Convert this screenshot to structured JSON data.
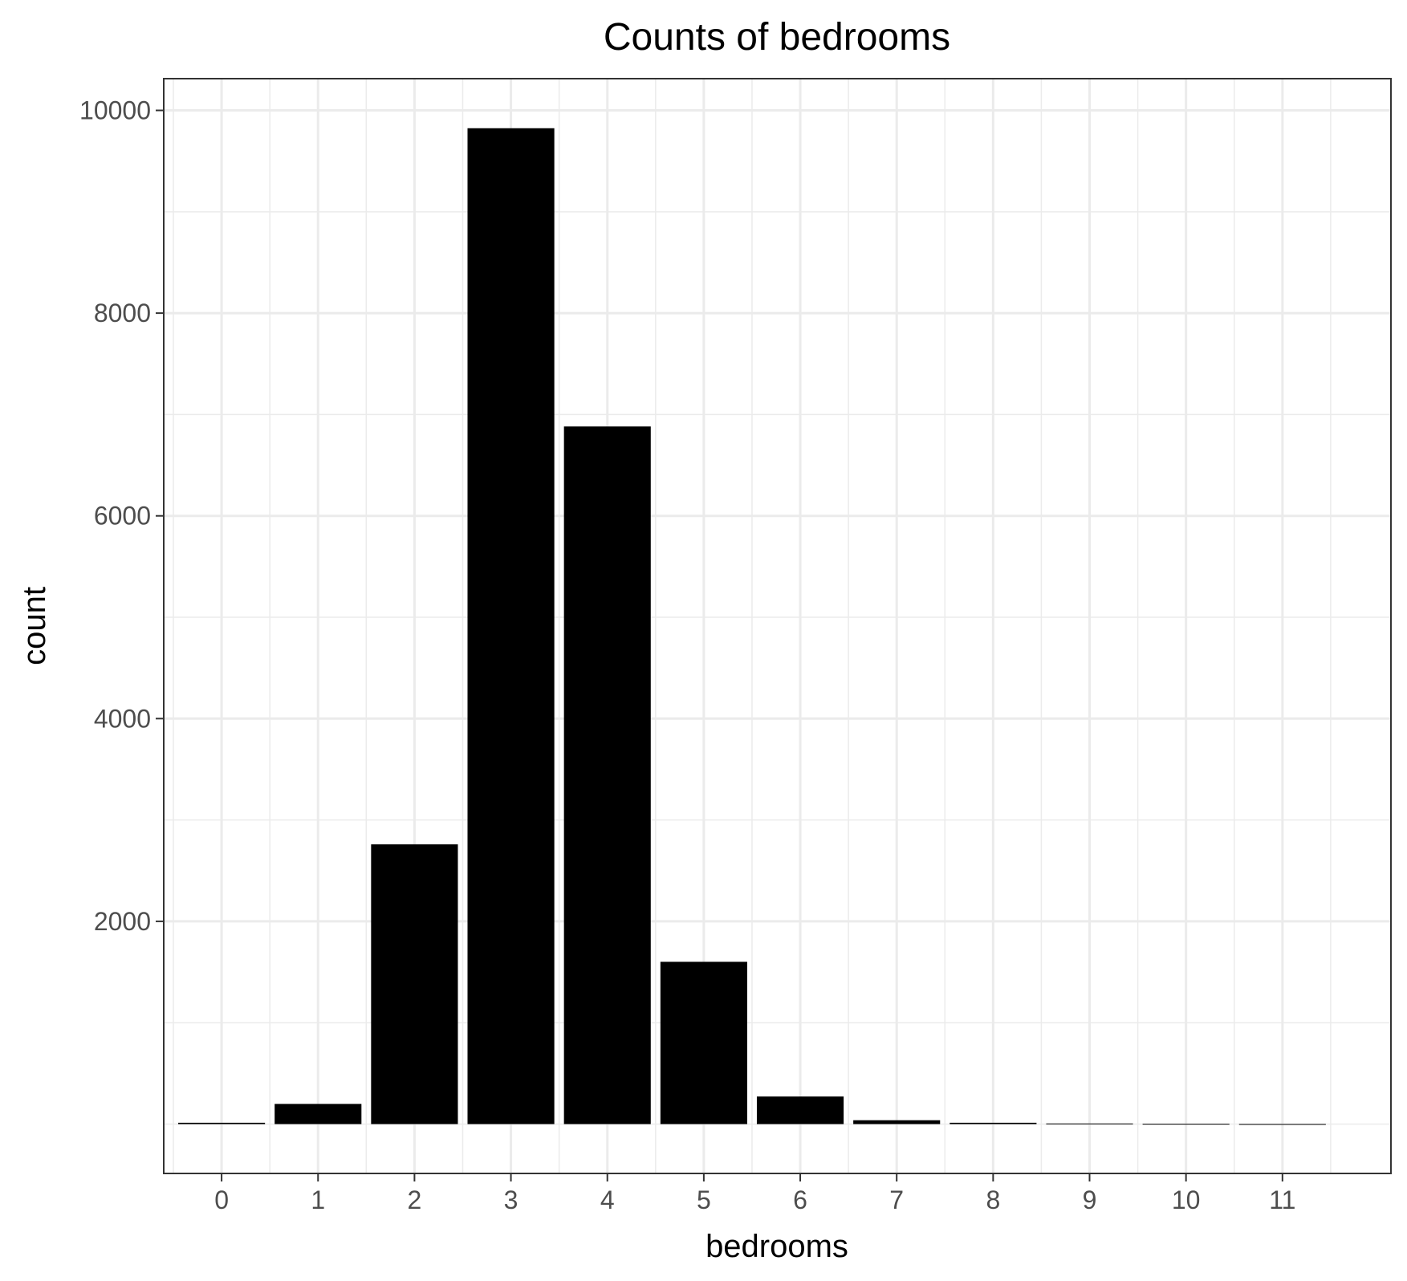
{
  "chart_data": {
    "type": "bar",
    "title": "Counts of bedrooms",
    "xlabel": "bedrooms",
    "ylabel": "count",
    "categories": [
      "0",
      "1",
      "2",
      "3",
      "4",
      "5",
      "6",
      "7",
      "8",
      "9",
      "10",
      "11"
    ],
    "values": [
      13,
      199,
      2760,
      9824,
      6882,
      1601,
      272,
      38,
      13,
      6,
      3,
      1
    ],
    "x_ticks": [
      "0",
      "1",
      "2",
      "3",
      "4",
      "5",
      "6",
      "7",
      "8",
      "9",
      "10",
      "11"
    ],
    "y_ticks": [
      2000,
      4000,
      6000,
      8000,
      10000
    ],
    "y_tick_labels": [
      "2000",
      "4000",
      "6000",
      "8000",
      "10000"
    ],
    "ylim": [
      -487,
      10313
    ],
    "grid": true,
    "bar_color": "#000000",
    "panel_background": "#ffffff",
    "grid_color": "#ebebeb"
  }
}
